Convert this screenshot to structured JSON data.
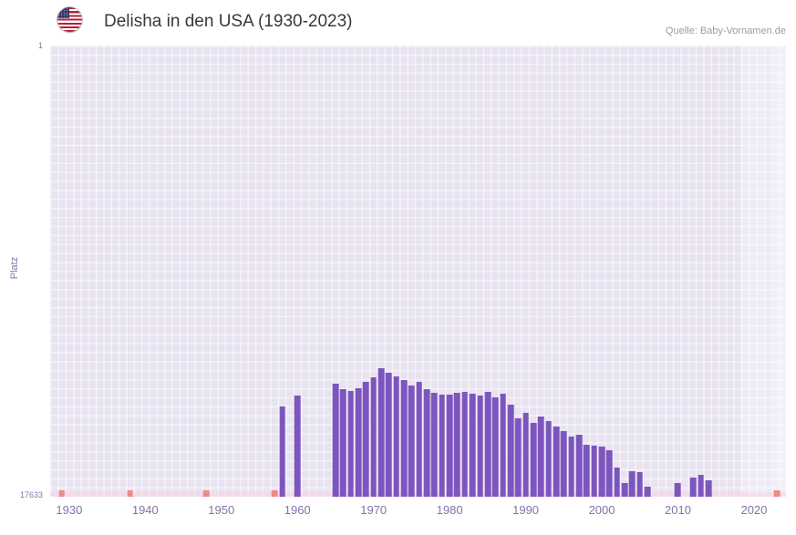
{
  "header": {
    "title": "Delisha in den USA (1930-2023)",
    "source": "Quelle: Baby-Vornamen.de",
    "flag_icon": "us-flag"
  },
  "chart_data": {
    "type": "bar",
    "title": "Delisha in den USA (1930-2023)",
    "xlabel": "",
    "ylabel": "Platz",
    "legend": "none",
    "grid": "on",
    "y_axis": {
      "min": 1,
      "max": 17633,
      "inverted": true,
      "top_label": "1",
      "bottom_label": "17633"
    },
    "x_domain": [
      1927.5,
      2024.2
    ],
    "x_ticks": [
      1930,
      1940,
      1950,
      1960,
      1970,
      1980,
      1990,
      2000,
      2010,
      2020
    ],
    "bars": [
      {
        "year": 1958,
        "rank": 14100
      },
      {
        "year": 1960,
        "rank": 13680
      },
      {
        "year": 1965,
        "rank": 13230
      },
      {
        "year": 1966,
        "rank": 13420
      },
      {
        "year": 1967,
        "rank": 13500
      },
      {
        "year": 1968,
        "rank": 13400
      },
      {
        "year": 1969,
        "rank": 13160
      },
      {
        "year": 1970,
        "rank": 12960
      },
      {
        "year": 1971,
        "rank": 12610
      },
      {
        "year": 1972,
        "rank": 12790
      },
      {
        "year": 1973,
        "rank": 12920
      },
      {
        "year": 1974,
        "rank": 13090
      },
      {
        "year": 1975,
        "rank": 13300
      },
      {
        "year": 1976,
        "rank": 13160
      },
      {
        "year": 1977,
        "rank": 13440
      },
      {
        "year": 1978,
        "rank": 13560
      },
      {
        "year": 1979,
        "rank": 13650
      },
      {
        "year": 1980,
        "rank": 13660
      },
      {
        "year": 1981,
        "rank": 13580
      },
      {
        "year": 1982,
        "rank": 13520
      },
      {
        "year": 1983,
        "rank": 13590
      },
      {
        "year": 1984,
        "rank": 13680
      },
      {
        "year": 1985,
        "rank": 13520
      },
      {
        "year": 1986,
        "rank": 13740
      },
      {
        "year": 1987,
        "rank": 13600
      },
      {
        "year": 1988,
        "rank": 14040
      },
      {
        "year": 1989,
        "rank": 14560
      },
      {
        "year": 1990,
        "rank": 14350
      },
      {
        "year": 1991,
        "rank": 14760
      },
      {
        "year": 1992,
        "rank": 14490
      },
      {
        "year": 1993,
        "rank": 14660
      },
      {
        "year": 1994,
        "rank": 14890
      },
      {
        "year": 1995,
        "rank": 15050
      },
      {
        "year": 1996,
        "rank": 15290
      },
      {
        "year": 1997,
        "rank": 15210
      },
      {
        "year": 1998,
        "rank": 15590
      },
      {
        "year": 1999,
        "rank": 15650
      },
      {
        "year": 2000,
        "rank": 15660
      },
      {
        "year": 2001,
        "rank": 15830
      },
      {
        "year": 2002,
        "rank": 16490
      },
      {
        "year": 2003,
        "rank": 17090
      },
      {
        "year": 2004,
        "rank": 16640
      },
      {
        "year": 2005,
        "rank": 16660
      },
      {
        "year": 2006,
        "rank": 17240
      },
      {
        "year": 2010,
        "rank": 17100
      },
      {
        "year": 2012,
        "rank": 16880
      },
      {
        "year": 2013,
        "rank": 16760
      },
      {
        "year": 2014,
        "rank": 16980
      }
    ],
    "unranked_marker_years": [
      1929,
      1938,
      1948,
      1957,
      2023
    ],
    "recent_bands": [
      {
        "from": 2018.2,
        "to": 2024.2,
        "opacity": 0.28
      },
      {
        "from": 2022.7,
        "to": 2024.2,
        "opacity": 0.22
      }
    ],
    "colors": {
      "bar": "#7d55be",
      "plot_bg": "#e8e3f1",
      "grid": "#ffffff",
      "unranked_marker": "#ef8a8a",
      "baseline_band": "#f7d6e4",
      "axis_text": "#8074a8",
      "title_text": "#383838",
      "source_text": "#9b9b9b"
    }
  }
}
